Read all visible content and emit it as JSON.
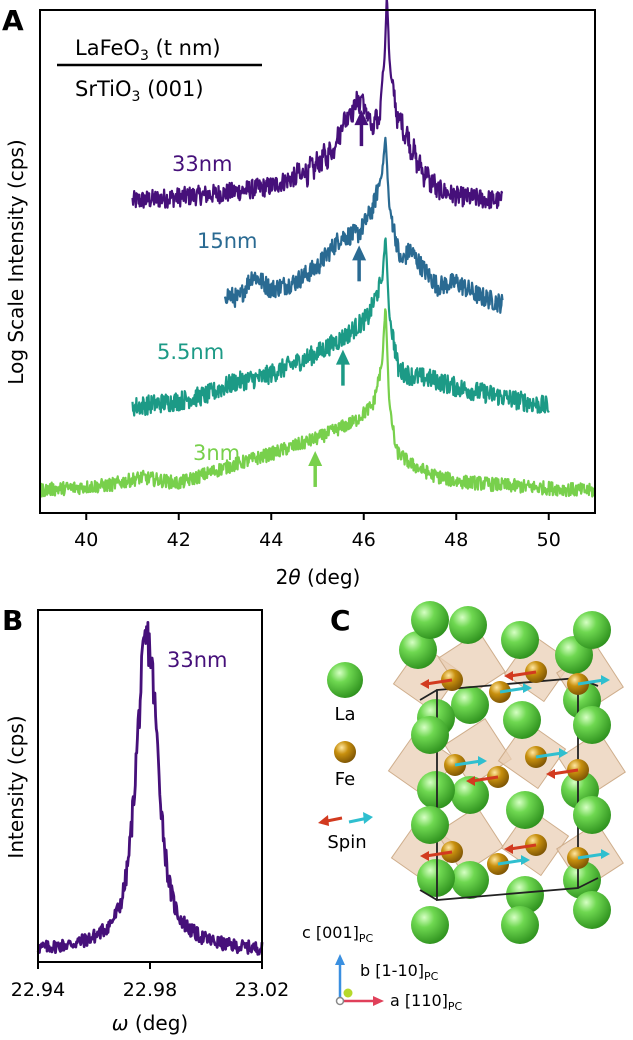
{
  "panels": {
    "a": "A",
    "b": "B",
    "c": "C"
  },
  "chart_data": [
    {
      "type": "line",
      "panel": "A",
      "title_main": "LaFeO",
      "title_sub": "3",
      "title_suffix": " (t nm)",
      "substrate_main": "SrTiO",
      "substrate_sub": "3",
      "substrate_suffix": " (001)",
      "xlabel_theta": "θ",
      "xlabel_prefix": "2",
      "xlabel_suffix": " (deg)",
      "ylabel": "Log Scale Intensity (cps)",
      "xlim": [
        39,
        51
      ],
      "xticks": [
        "40",
        "42",
        "44",
        "46",
        "48",
        "50"
      ],
      "xtick_values": [
        40,
        42,
        44,
        46,
        48,
        50
      ],
      "log_scale": true,
      "series": [
        {
          "name": "33nm",
          "color": "#46107a",
          "x_range": [
            41.0,
            49.0
          ],
          "offset": 3.0,
          "arrow_x": 45.95,
          "points": [
            [
              41.0,
              0.0
            ],
            [
              43.0,
              0.08
            ],
            [
              44.0,
              0.15
            ],
            [
              44.8,
              0.3
            ],
            [
              45.3,
              0.5
            ],
            [
              45.6,
              0.85
            ],
            [
              45.95,
              1.05
            ],
            [
              46.2,
              0.72
            ],
            [
              46.35,
              0.9
            ],
            [
              46.45,
              1.5
            ],
            [
              46.5,
              2.1
            ],
            [
              46.55,
              1.45
            ],
            [
              46.7,
              0.9
            ],
            [
              46.9,
              0.7
            ],
            [
              47.2,
              0.35
            ],
            [
              47.6,
              0.12
            ],
            [
              48.0,
              0.05
            ],
            [
              49.0,
              0.0
            ]
          ]
        },
        {
          "name": "15nm",
          "color": "#2a6a92",
          "x_range": [
            43.0,
            49.0
          ],
          "offset": 1.95,
          "arrow_x": 45.9,
          "points": [
            [
              43.0,
              0.1
            ],
            [
              43.3,
              0.05
            ],
            [
              43.6,
              0.3
            ],
            [
              44.0,
              0.15
            ],
            [
              44.5,
              0.22
            ],
            [
              45.0,
              0.38
            ],
            [
              45.5,
              0.68
            ],
            [
              45.9,
              0.72
            ],
            [
              46.2,
              0.98
            ],
            [
              46.4,
              1.35
            ],
            [
              46.47,
              1.7
            ],
            [
              46.55,
              1.0
            ],
            [
              46.8,
              0.42
            ],
            [
              47.0,
              0.55
            ],
            [
              47.3,
              0.35
            ],
            [
              47.6,
              0.18
            ],
            [
              48.0,
              0.22
            ],
            [
              48.5,
              0.08
            ],
            [
              49.0,
              0.0
            ]
          ]
        },
        {
          "name": "5.5nm",
          "color": "#1c9a86",
          "x_range": [
            41.0,
            50.0
          ],
          "offset": 0.9,
          "arrow_x": 45.55,
          "points": [
            [
              41.0,
              0.0
            ],
            [
              42.0,
              0.06
            ],
            [
              42.6,
              0.12
            ],
            [
              43.2,
              0.25
            ],
            [
              43.8,
              0.3
            ],
            [
              44.4,
              0.42
            ],
            [
              45.0,
              0.55
            ],
            [
              45.6,
              0.72
            ],
            [
              46.1,
              0.92
            ],
            [
              46.4,
              1.3
            ],
            [
              46.47,
              1.75
            ],
            [
              46.55,
              0.95
            ],
            [
              46.75,
              0.38
            ],
            [
              47.0,
              0.32
            ],
            [
              47.5,
              0.28
            ],
            [
              48.0,
              0.2
            ],
            [
              49.0,
              0.1
            ],
            [
              50.0,
              0.0
            ]
          ]
        },
        {
          "name": "3nm",
          "color": "#78d04c",
          "x_range": [
            39.0,
            51.0
          ],
          "offset": 0.0,
          "arrow_x": 44.95,
          "points": [
            [
              39.0,
              0.05
            ],
            [
              40.5,
              0.1
            ],
            [
              41.2,
              0.18
            ],
            [
              42.0,
              0.12
            ],
            [
              43.0,
              0.28
            ],
            [
              44.0,
              0.42
            ],
            [
              45.0,
              0.58
            ],
            [
              45.8,
              0.75
            ],
            [
              46.2,
              0.92
            ],
            [
              46.4,
              1.35
            ],
            [
              46.47,
              1.95
            ],
            [
              46.55,
              0.95
            ],
            [
              46.7,
              0.45
            ],
            [
              47.0,
              0.32
            ],
            [
              47.5,
              0.2
            ],
            [
              48.0,
              0.14
            ],
            [
              49.0,
              0.1
            ],
            [
              51.0,
              0.04
            ]
          ]
        }
      ]
    },
    {
      "type": "line",
      "panel": "B",
      "series_label": "33nm",
      "color": "#46107a",
      "xlabel_omega": "ω",
      "xlabel_suffix": " (deg)",
      "ylabel": "Intensity (cps)",
      "xlim": [
        22.94,
        23.02
      ],
      "xticks": [
        "22.94",
        "22.98",
        "23.02"
      ],
      "xtick_values": [
        22.94,
        22.98,
        23.02
      ],
      "peak_center": 22.979,
      "peak_fwhm": 0.008
    }
  ],
  "structure": {
    "legend": {
      "la": "La",
      "fe": "Fe",
      "spin": "Spin"
    },
    "colors": {
      "la": "#4fc23a",
      "fe": "#b8860b",
      "spin_a": "#d23a1f",
      "spin_b": "#2fbfcf",
      "octahedra": "#e9cfb5"
    },
    "axes": {
      "c_main": "c [001]",
      "c_sub": "PC",
      "b_main": "b [1-10]",
      "b_sub": "PC",
      "a_main": "a [110]",
      "a_sub": "PC"
    }
  }
}
